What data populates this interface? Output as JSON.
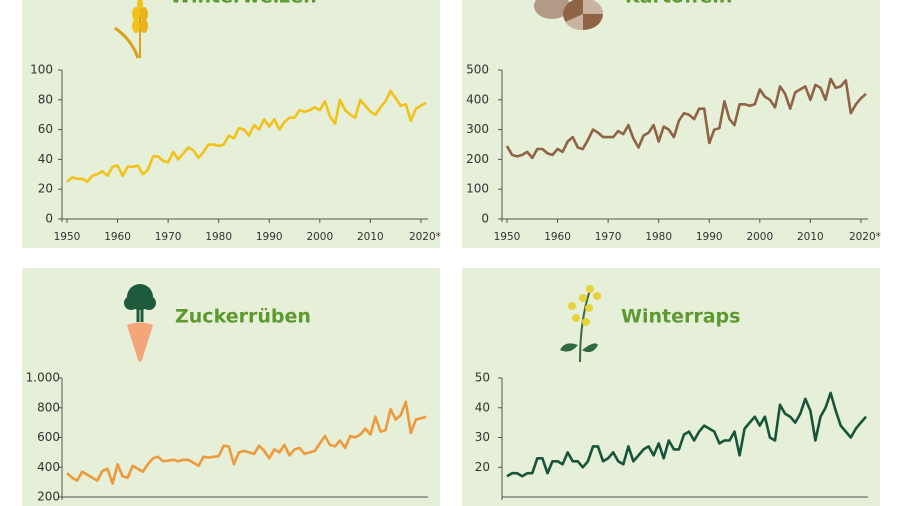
{
  "chart_data": [
    {
      "type": "line",
      "title": "Winterweizen",
      "color": "#f2c21b",
      "x": [
        1950,
        1951,
        1952,
        1953,
        1954,
        1955,
        1956,
        1957,
        1958,
        1959,
        1960,
        1961,
        1962,
        1963,
        1964,
        1965,
        1966,
        1967,
        1968,
        1969,
        1970,
        1971,
        1972,
        1973,
        1974,
        1975,
        1976,
        1977,
        1978,
        1979,
        1980,
        1981,
        1982,
        1983,
        1984,
        1985,
        1986,
        1987,
        1988,
        1989,
        1990,
        1991,
        1992,
        1993,
        1994,
        1995,
        1996,
        1997,
        1998,
        1999,
        2000,
        2001,
        2002,
        2003,
        2004,
        2005,
        2006,
        2007,
        2008,
        2009,
        2010,
        2011,
        2012,
        2013,
        2014,
        2015,
        2016,
        2017,
        2018,
        2019,
        2020,
        2021
      ],
      "values": [
        25,
        28,
        27,
        27,
        25,
        29,
        30,
        32,
        29,
        35,
        36,
        29,
        35,
        35,
        36,
        30,
        33,
        42,
        42,
        39,
        38,
        45,
        40,
        44,
        48,
        46,
        41,
        45,
        50,
        50,
        49,
        50,
        56,
        54,
        61,
        60,
        56,
        63,
        60,
        67,
        62,
        67,
        60,
        65,
        68,
        68,
        73,
        72,
        73,
        75,
        73,
        79,
        69,
        64,
        80,
        73,
        70,
        68,
        80,
        76,
        72,
        70,
        75,
        79,
        86,
        81,
        76,
        77,
        66,
        74,
        76,
        78
      ],
      "xlim": [
        1950,
        2021
      ],
      "xticks": [
        1950,
        1960,
        1970,
        1980,
        1990,
        2000,
        2010,
        {
          "value": 2020,
          "label": "2020*"
        }
      ],
      "ylim": [
        0,
        100
      ],
      "yticks": [
        0,
        20,
        40,
        60,
        80,
        100
      ]
    },
    {
      "type": "line",
      "title": "Kartoffeln",
      "color": "#8e6444",
      "x": [
        1950,
        1951,
        1952,
        1953,
        1954,
        1955,
        1956,
        1957,
        1958,
        1959,
        1960,
        1961,
        1962,
        1963,
        1964,
        1965,
        1966,
        1967,
        1968,
        1969,
        1970,
        1971,
        1972,
        1973,
        1974,
        1975,
        1976,
        1977,
        1978,
        1979,
        1980,
        1981,
        1982,
        1983,
        1984,
        1985,
        1986,
        1987,
        1988,
        1989,
        1990,
        1991,
        1992,
        1993,
        1994,
        1995,
        1996,
        1997,
        1998,
        1999,
        2000,
        2001,
        2002,
        2003,
        2004,
        2005,
        2006,
        2007,
        2008,
        2009,
        2010,
        2011,
        2012,
        2013,
        2014,
        2015,
        2016,
        2017,
        2018,
        2019,
        2020,
        2021
      ],
      "values": [
        245,
        215,
        210,
        215,
        225,
        205,
        235,
        235,
        220,
        215,
        235,
        225,
        260,
        275,
        240,
        235,
        265,
        300,
        290,
        275,
        275,
        275,
        295,
        285,
        315,
        270,
        240,
        280,
        290,
        315,
        260,
        310,
        300,
        275,
        330,
        355,
        350,
        335,
        370,
        370,
        255,
        300,
        305,
        395,
        335,
        315,
        385,
        385,
        380,
        385,
        435,
        410,
        400,
        375,
        445,
        420,
        370,
        425,
        435,
        445,
        400,
        450,
        440,
        400,
        470,
        440,
        445,
        465,
        355,
        385,
        405,
        420
      ],
      "xlim": [
        1950,
        2021
      ],
      "xticks": [
        1950,
        1960,
        1970,
        1980,
        1990,
        2000,
        2010,
        {
          "value": 2020,
          "label": "2020*"
        }
      ],
      "ylim": [
        0,
        500
      ],
      "yticks": [
        0,
        100,
        200,
        300,
        400,
        500
      ]
    },
    {
      "type": "line",
      "title": "Zuckerrüben",
      "color": "#ee9a3c",
      "x": [
        1950,
        1951,
        1952,
        1953,
        1954,
        1955,
        1956,
        1957,
        1958,
        1959,
        1960,
        1961,
        1962,
        1963,
        1964,
        1965,
        1966,
        1967,
        1968,
        1969,
        1970,
        1971,
        1972,
        1973,
        1974,
        1975,
        1976,
        1977,
        1978,
        1979,
        1980,
        1981,
        1982,
        1983,
        1984,
        1985,
        1986,
        1987,
        1988,
        1989,
        1990,
        1991,
        1992,
        1993,
        1994,
        1995,
        1996,
        1997,
        1998,
        1999,
        2000,
        2001,
        2002,
        2003,
        2004,
        2005,
        2006,
        2007,
        2008,
        2009,
        2010,
        2011,
        2012,
        2013,
        2014,
        2015,
        2016,
        2017,
        2018,
        2019,
        2020,
        2021
      ],
      "values": [
        360,
        330,
        310,
        370,
        350,
        330,
        310,
        375,
        390,
        290,
        420,
        340,
        330,
        410,
        390,
        370,
        420,
        460,
        470,
        440,
        445,
        450,
        440,
        450,
        450,
        430,
        410,
        470,
        465,
        470,
        475,
        545,
        540,
        420,
        500,
        510,
        500,
        490,
        545,
        510,
        460,
        520,
        500,
        550,
        480,
        520,
        530,
        490,
        500,
        510,
        560,
        610,
        550,
        540,
        580,
        530,
        610,
        600,
        620,
        660,
        620,
        740,
        640,
        650,
        790,
        720,
        750,
        840,
        630,
        720,
        730,
        740
      ],
      "xlim": [
        1950,
        2021
      ],
      "ylim": [
        200,
        1000
      ],
      "yticks": [
        200,
        400,
        600,
        800,
        {
          "value": 1000,
          "label": "1.000"
        }
      ]
    },
    {
      "type": "line",
      "title": "Winterraps",
      "color": "#17553a",
      "x": [
        1950,
        1951,
        1952,
        1953,
        1954,
        1955,
        1956,
        1957,
        1958,
        1959,
        1960,
        1961,
        1962,
        1963,
        1964,
        1965,
        1966,
        1967,
        1968,
        1969,
        1970,
        1971,
        1972,
        1973,
        1974,
        1975,
        1976,
        1977,
        1978,
        1979,
        1980,
        1981,
        1982,
        1983,
        1984,
        1985,
        1986,
        1987,
        1988,
        1989,
        1990,
        1991,
        1992,
        1993,
        1994,
        1995,
        1996,
        1997,
        1998,
        1999,
        2000,
        2001,
        2002,
        2003,
        2004,
        2005,
        2006,
        2007,
        2008,
        2009,
        2010,
        2011,
        2012,
        2013,
        2014,
        2015,
        2016,
        2017,
        2018,
        2019,
        2020,
        2021
      ],
      "values": [
        17,
        18,
        18,
        17,
        18,
        18,
        23,
        23,
        18,
        22,
        22,
        21,
        25,
        22,
        22,
        20,
        22,
        27,
        27,
        22,
        23,
        25,
        22,
        21,
        27,
        22,
        24,
        26,
        27,
        24,
        28,
        23,
        29,
        26,
        26,
        31,
        32,
        29,
        32,
        34,
        33,
        32,
        28,
        29,
        29,
        32,
        24,
        33,
        35,
        37,
        34,
        37,
        30,
        29,
        41,
        38,
        37,
        35,
        38,
        43,
        39,
        29,
        37,
        40,
        45,
        39,
        34,
        32,
        30,
        33,
        35,
        37
      ],
      "xlim": [
        1950,
        2021
      ],
      "ylim": [
        10,
        50
      ],
      "yticks": [
        20,
        30,
        40,
        50
      ]
    }
  ]
}
